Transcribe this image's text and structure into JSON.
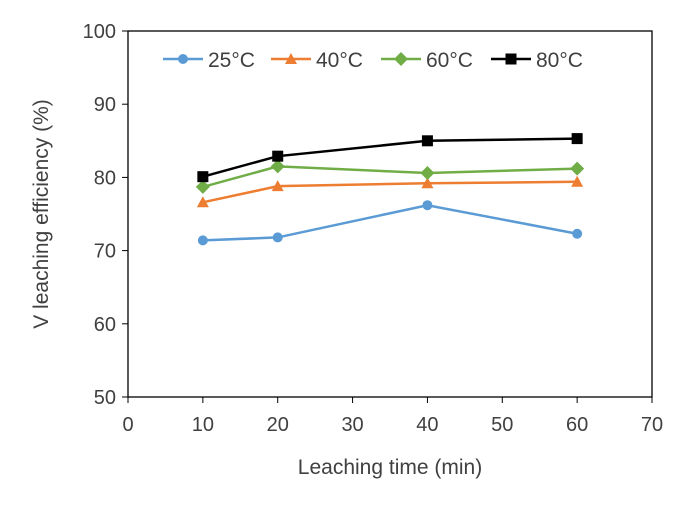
{
  "chart_data": {
    "type": "line",
    "title": "",
    "xlabel": "Leaching time (min)",
    "ylabel": "V leaching efficiency (%)",
    "xlim": [
      0,
      70
    ],
    "ylim": [
      50,
      100
    ],
    "xticks": [
      0,
      10,
      20,
      30,
      40,
      50,
      60,
      70
    ],
    "yticks": [
      50,
      60,
      70,
      80,
      90,
      100
    ],
    "grid": false,
    "legend_position": "top",
    "x": [
      10,
      20,
      40,
      60
    ],
    "series": [
      {
        "name": "25°C",
        "color": "#5B9BD5",
        "marker": "circle",
        "values": [
          71.4,
          71.8,
          76.2,
          72.3
        ]
      },
      {
        "name": "40°C",
        "color": "#ED7D31",
        "marker": "triangle",
        "values": [
          76.6,
          78.8,
          79.2,
          79.4
        ]
      },
      {
        "name": "60°C",
        "color": "#70AD47",
        "marker": "diamond",
        "values": [
          78.7,
          81.5,
          80.6,
          81.2
        ]
      },
      {
        "name": "80°C",
        "color": "#000000",
        "marker": "square",
        "values": [
          80.1,
          82.9,
          85.0,
          85.3
        ]
      }
    ]
  }
}
